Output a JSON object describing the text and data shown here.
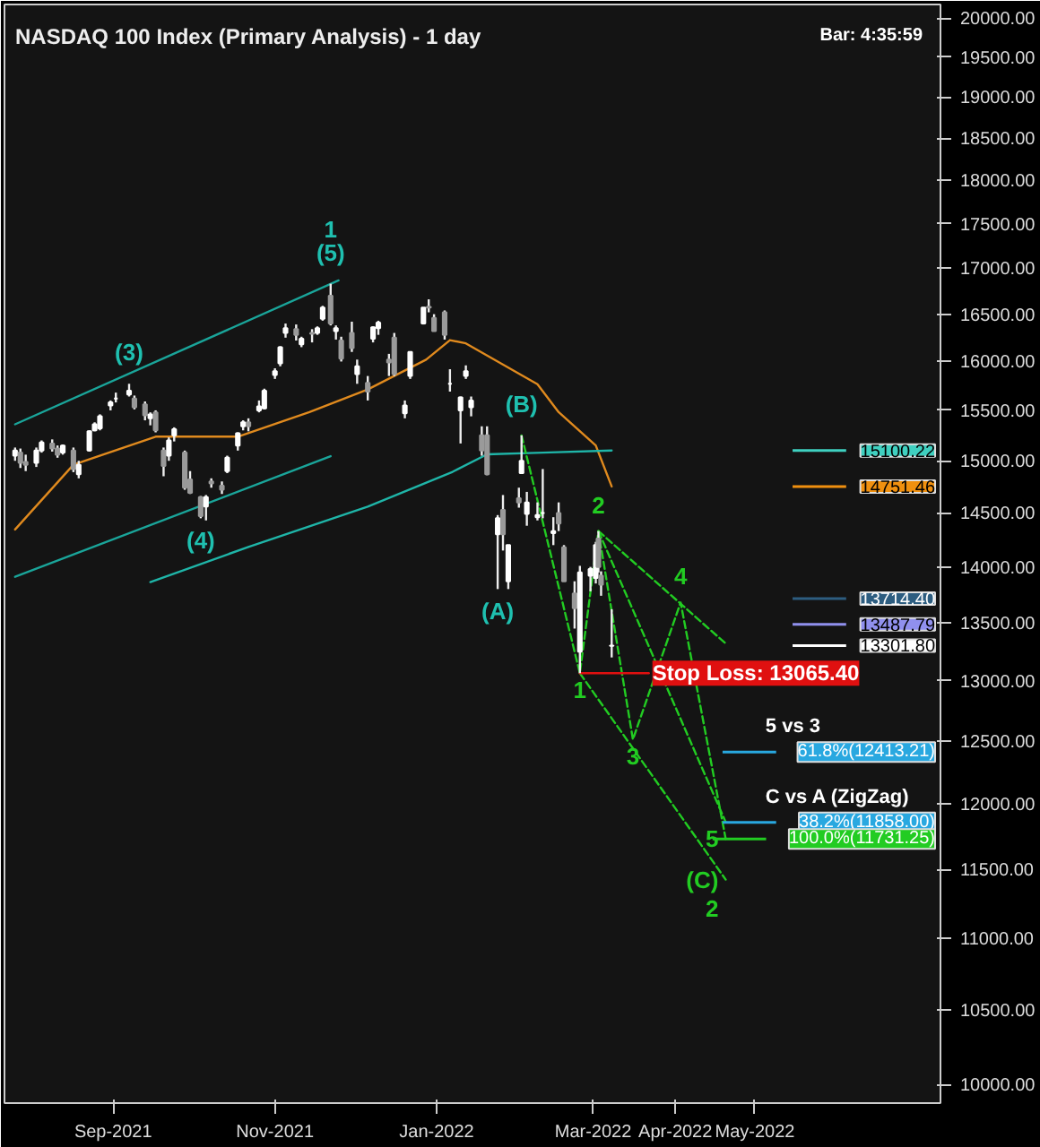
{
  "chart_data": {
    "type": "candlestick",
    "title": "NASDAQ 100 Index (Primary Analysis) - 1 day",
    "log": true,
    "x": [
      "2021-07-26",
      "2021-07-28",
      "2021-07-30",
      "2021-08-03",
      "2021-08-05",
      "2021-08-09",
      "2021-08-11",
      "2021-08-13",
      "2021-08-17",
      "2021-08-19",
      "2021-08-23",
      "2021-08-25",
      "2021-08-27",
      "2021-08-31",
      "2021-09-02",
      "2021-09-07",
      "2021-09-09",
      "2021-09-13",
      "2021-09-15",
      "2021-09-17",
      "2021-09-20",
      "2021-09-22",
      "2021-09-24",
      "2021-09-28",
      "2021-09-30",
      "2021-10-04",
      "2021-10-06",
      "2021-10-08",
      "2021-10-12",
      "2021-10-14",
      "2021-10-18",
      "2021-10-20",
      "2021-10-22",
      "2021-10-26",
      "2021-10-28",
      "2021-11-01",
      "2021-11-03",
      "2021-11-05",
      "2021-11-09",
      "2021-11-11",
      "2021-11-15",
      "2021-11-17",
      "2021-11-19",
      "2021-11-22",
      "2021-11-24",
      "2021-11-26",
      "2021-11-30",
      "2021-12-02",
      "2021-12-06",
      "2021-12-08",
      "2021-12-10",
      "2021-12-14",
      "2021-12-16",
      "2021-12-20",
      "2021-12-22",
      "2021-12-27",
      "2021-12-29",
      "2021-12-31",
      "2022-01-04",
      "2022-01-06",
      "2022-01-10",
      "2022-01-12",
      "2022-01-14",
      "2022-01-18",
      "2022-01-20",
      "2022-01-24",
      "2022-01-26",
      "2022-01-28",
      "2022-02-01",
      "2022-02-02",
      "2022-02-04",
      "2022-02-08",
      "2022-02-10",
      "2022-02-14",
      "2022-02-16",
      "2022-02-18",
      "2022-02-22",
      "2022-02-24",
      "2022-02-28",
      "2022-03-02",
      "2022-03-03",
      "2022-03-04",
      "2022-03-08"
    ],
    "ohlc": [
      [
        15050,
        15130,
        15000,
        15100
      ],
      [
        15080,
        15120,
        14930,
        14980
      ],
      [
        14990,
        15060,
        14900,
        14960
      ],
      [
        14980,
        15130,
        14940,
        15100
      ],
      [
        15100,
        15200,
        15080,
        15180
      ],
      [
        15170,
        15210,
        15090,
        15120
      ],
      [
        15120,
        15150,
        15030,
        15060
      ],
      [
        15080,
        15160,
        15060,
        15150
      ],
      [
        15100,
        15130,
        14890,
        14920
      ],
      [
        14870,
        15000,
        14830,
        14960
      ],
      [
        15100,
        15300,
        15090,
        15290
      ],
      [
        15300,
        15380,
        15290,
        15360
      ],
      [
        15320,
        15460,
        15300,
        15440
      ],
      [
        15550,
        15600,
        15500,
        15580
      ],
      [
        15620,
        15680,
        15580,
        15620
      ],
      [
        15660,
        15770,
        15640,
        15700
      ],
      [
        15620,
        15650,
        15510,
        15530
      ],
      [
        15560,
        15590,
        15400,
        15450
      ],
      [
        15420,
        15480,
        15350,
        15460
      ],
      [
        15480,
        15500,
        15280,
        15300
      ],
      [
        15100,
        15130,
        14850,
        14950
      ],
      [
        15050,
        15230,
        15000,
        15200
      ],
      [
        15250,
        15330,
        15190,
        15310
      ],
      [
        15080,
        15100,
        14720,
        14740
      ],
      [
        14820,
        14900,
        14680,
        14690
      ],
      [
        14650,
        14660,
        14450,
        14470
      ],
      [
        14560,
        14670,
        14430,
        14650
      ],
      [
        14800,
        14830,
        14740,
        14780
      ],
      [
        14760,
        14800,
        14680,
        14720
      ],
      [
        14900,
        15050,
        14880,
        15030
      ],
      [
        15150,
        15280,
        15100,
        15270
      ],
      [
        15340,
        15400,
        15300,
        15380
      ],
      [
        15380,
        15420,
        15290,
        15340
      ],
      [
        15500,
        15600,
        15480,
        15540
      ],
      [
        15520,
        15720,
        15510,
        15700
      ],
      [
        15860,
        15930,
        15820,
        15900
      ],
      [
        15980,
        16160,
        15950,
        16150
      ],
      [
        16300,
        16400,
        16250,
        16350
      ],
      [
        16340,
        16390,
        16220,
        16280
      ],
      [
        16180,
        16260,
        16150,
        16240
      ],
      [
        16300,
        16340,
        16200,
        16290
      ],
      [
        16300,
        16370,
        16280,
        16350
      ],
      [
        16450,
        16590,
        16430,
        16570
      ],
      [
        16700,
        16830,
        16380,
        16400
      ],
      [
        16320,
        16380,
        16230,
        16350
      ],
      [
        16220,
        16260,
        16000,
        16030
      ],
      [
        16300,
        16420,
        16100,
        16140
      ],
      [
        15870,
        16020,
        15770,
        15950
      ],
      [
        15780,
        15850,
        15600,
        15690
      ],
      [
        16240,
        16370,
        16200,
        16360
      ],
      [
        16350,
        16430,
        16280,
        16410
      ],
      [
        16020,
        16080,
        15850,
        15990
      ],
      [
        16250,
        16300,
        15850,
        15870
      ],
      [
        15470,
        15600,
        15420,
        15550
      ],
      [
        15850,
        16100,
        15820,
        16100
      ],
      [
        16400,
        16570,
        16390,
        16570
      ],
      [
        16580,
        16660,
        16520,
        16570
      ],
      [
        16460,
        16500,
        16320,
        16320
      ],
      [
        16520,
        16540,
        16230,
        16280
      ],
      [
        15770,
        15920,
        15690,
        15770
      ],
      [
        15500,
        15640,
        15170,
        15630
      ],
      [
        15850,
        15960,
        15820,
        15900
      ],
      [
        15530,
        15640,
        15440,
        15600
      ],
      [
        15250,
        15340,
        15050,
        15100
      ],
      [
        15250,
        15340,
        14860,
        14870
      ],
      [
        14300,
        14480,
        13800,
        14450
      ],
      [
        14530,
        14670,
        14150,
        14300
      ],
      [
        13870,
        14200,
        13800,
        14200
      ],
      [
        14640,
        14740,
        14550,
        14600
      ],
      [
        14880,
        15250,
        14880,
        15000
      ],
      [
        14490,
        14700,
        14380,
        14600
      ],
      [
        14460,
        14600,
        14430,
        14480
      ],
      [
        14500,
        14920,
        14450,
        14500
      ],
      [
        14310,
        14460,
        14200,
        14330
      ],
      [
        14500,
        14600,
        14330,
        14400
      ],
      [
        14180,
        14200,
        13870,
        13870
      ],
      [
        13760,
        13870,
        13450,
        13630
      ],
      [
        13250,
        14010,
        13065,
        13950
      ],
      [
        13920,
        14000,
        13780,
        13980
      ],
      [
        13900,
        14230,
        13850,
        14200
      ],
      [
        14260,
        14330,
        13950,
        14000
      ],
      [
        13920,
        13960,
        13740,
        13840
      ],
      [
        13300,
        13620,
        13200,
        13301.8
      ]
    ],
    "series": [
      {
        "type": "line",
        "color": "#e08a1e",
        "x": [
          "2021-07-26",
          "2021-08-17",
          "2021-09-17",
          "2021-10-18",
          "2021-11-14",
          "2021-12-06",
          "2021-12-28",
          "2022-01-06",
          "2022-01-12",
          "2022-02-08",
          "2022-02-16",
          "2022-03-02",
          "2022-03-08"
        ],
        "values": [
          14345,
          14962,
          15237,
          15237,
          15482,
          15712,
          16019,
          16224,
          16190,
          15766,
          15482,
          15150,
          14751.46
        ]
      },
      {
        "type": "line",
        "color": "#1fb5a8",
        "x": [
          "2021-09-15",
          "2021-10-22",
          "2021-12-06",
          "2022-01-07",
          "2022-01-20",
          "2022-02-10",
          "2022-03-08"
        ],
        "values": [
          13863,
          14183,
          14560,
          14893,
          15063,
          15080,
          15100.22
        ]
      },
      {
        "type": "line",
        "color": "#1aa59a",
        "x": [
          "2021-07-26",
          "2021-11-25"
        ],
        "values": [
          15360,
          16866
        ]
      },
      {
        "type": "line",
        "color": "#1aa59a",
        "x": [
          "2021-07-26",
          "2021-11-22"
        ],
        "values": [
          13910,
          15045
        ]
      },
      {
        "type": "line",
        "color": "#22cc22",
        "line_style": "dashed",
        "x": [
          "2022-02-02",
          "2022-02-24",
          "2022-03-03",
          "2022-03-16",
          "2022-04-03",
          "2022-04-20"
        ],
        "values": [
          15250,
          13065,
          14330,
          12515,
          13680,
          11731.25
        ]
      },
      {
        "type": "line",
        "color": "#22cc22",
        "line_style": "dashed",
        "x": [
          "2022-03-03",
          "2022-04-20"
        ],
        "values": [
          14330,
          13320
        ]
      },
      {
        "type": "line",
        "color": "#22cc22",
        "line_style": "dashed",
        "x": [
          "2022-02-24",
          "2022-04-20"
        ],
        "values": [
          13065,
          11425
        ]
      },
      {
        "type": "line",
        "color": "#22cc22",
        "line_style": "dashed",
        "x": [
          "2022-03-03",
          "2022-04-20"
        ],
        "values": [
          14330,
          11860
        ]
      },
      {
        "type": "line",
        "color": "#e01010",
        "x": [
          "2022-02-24",
          "2022-03-22"
        ],
        "values": [
          13065.4,
          13065.4
        ]
      }
    ],
    "xlim": [
      "2021-07-22",
      "2022-07-10"
    ],
    "xticks": [
      {
        "value": "2021-09-01",
        "label": "Sep-2021"
      },
      {
        "value": "2021-11-01",
        "label": "Nov-2021"
      },
      {
        "value": "2022-01-01",
        "label": "Jan-2022"
      },
      {
        "value": "2022-03-01",
        "label": "Mar-2022"
      },
      {
        "value": "2022-04-01",
        "label": "Apr-2022"
      },
      {
        "value": "2022-05-01",
        "label": "May-2022"
      }
    ],
    "ylim": [
      9880,
      20180
    ],
    "yticks": [
      {
        "value": 10000,
        "label": "10000.00"
      },
      {
        "value": 10500,
        "label": "10500.00"
      },
      {
        "value": 11000,
        "label": "11000.00"
      },
      {
        "value": 11500,
        "label": "11500.00"
      },
      {
        "value": 12000,
        "label": "12000.00"
      },
      {
        "value": 12500,
        "label": "12500.00"
      },
      {
        "value": 13000,
        "label": "13000.00"
      },
      {
        "value": 13500,
        "label": "13500.00"
      },
      {
        "value": 14000,
        "label": "14000.00"
      },
      {
        "value": 14500,
        "label": "14500.00"
      },
      {
        "value": 15000,
        "label": "15000.00"
      },
      {
        "value": 15500,
        "label": "15500.00"
      },
      {
        "value": 16000,
        "label": "16000.00"
      },
      {
        "value": 16500,
        "label": "16500.00"
      },
      {
        "value": 17000,
        "label": "17000.00"
      },
      {
        "value": 17500,
        "label": "17500.00"
      },
      {
        "value": 18000,
        "label": "18000.00"
      },
      {
        "value": 18500,
        "label": "18500.00"
      },
      {
        "value": 19000,
        "label": "19000.00"
      },
      {
        "value": 19500,
        "label": "19500.00"
      },
      {
        "value": 20000,
        "label": "20000.00"
      }
    ],
    "ref_lines": [
      {
        "axis": "y",
        "value": 15100.22,
        "label": "15100.22",
        "color": "#3fd0c0"
      },
      {
        "axis": "y",
        "value": 14751.46,
        "label": "14751.46",
        "color": "#f0900f"
      },
      {
        "axis": "y",
        "value": 13714.4,
        "label": "13714.40",
        "color": "#2d5d80"
      },
      {
        "axis": "y",
        "value": 13487.79,
        "label": "13487.79",
        "color": "#9090ee"
      },
      {
        "axis": "y",
        "value": 13301.8,
        "label": "13301.80",
        "color": "#ffffff"
      },
      {
        "axis": "y",
        "value": 12413.21,
        "label": "61.8%(12413.21)",
        "color": "#29a8e0"
      },
      {
        "axis": "y",
        "value": 11858,
        "label": "38.2%(11858.00)",
        "color": "#29a8e0"
      },
      {
        "axis": "y",
        "value": 11731.25,
        "label": "100.0%(11731.25)",
        "color": "#22cc22"
      }
    ],
    "annotations": [
      "Bar: 4:35:59",
      {
        "text": "(3)",
        "x": "2021-09-07",
        "y": 15770
      },
      {
        "text": "(4)",
        "x": "2021-10-04",
        "y": 14450
      },
      {
        "text": "(5)",
        "x": "2021-11-22",
        "y": 16830
      },
      {
        "text": "1",
        "x": "2021-11-22",
        "y": 16830
      },
      {
        "text": "(A)",
        "x": "2022-01-24",
        "y": 13800
      },
      {
        "text": "(B)",
        "x": "2022-02-02",
        "y": 15250
      },
      {
        "text": "1",
        "x": "2022-02-24",
        "y": 13065
      },
      {
        "text": "2",
        "x": "2022-03-03",
        "y": 14330
      },
      {
        "text": "3",
        "x": "2022-03-16",
        "y": 12515
      },
      {
        "text": "4",
        "x": "2022-04-03",
        "y": 13680
      },
      {
        "text": "5",
        "x": "2022-04-20",
        "y": 11731.25
      },
      {
        "text": "(C)",
        "x": "2022-04-20",
        "y": 11425
      },
      {
        "text": "2",
        "x": "2022-04-20",
        "y": 11425
      },
      {
        "text": "Stop Loss: 13065.40",
        "x": "2022-03-22",
        "y": 13065.4
      },
      {
        "text": "5 vs 3",
        "x": "2022-05-05",
        "y": 12413.21
      },
      {
        "text": "C vs A (ZigZag)",
        "x": "2022-05-05",
        "y": 11858
      }
    ]
  }
}
